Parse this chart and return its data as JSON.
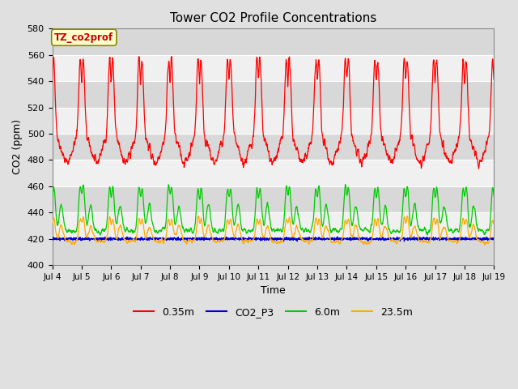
{
  "title": "Tower CO2 Profile Concentrations",
  "xlabel": "Time",
  "ylabel": "CO2 (ppm)",
  "ylim": [
    400,
    580
  ],
  "yticks": [
    400,
    420,
    440,
    460,
    480,
    500,
    520,
    540,
    560,
    580
  ],
  "legend_label": "TZ_co2prof",
  "series_labels": [
    "0.35m",
    "CO2_P3",
    "6.0m",
    "23.5m"
  ],
  "series_colors": [
    "#ff0000",
    "#0000cc",
    "#00cc00",
    "#ffaa00"
  ],
  "fig_bg": "#e0e0e0",
  "plot_bg": "#f0f0f0",
  "band_color": "#d8d8d8",
  "grid_color": "#ffffff",
  "n_days": 15,
  "seed": 42
}
